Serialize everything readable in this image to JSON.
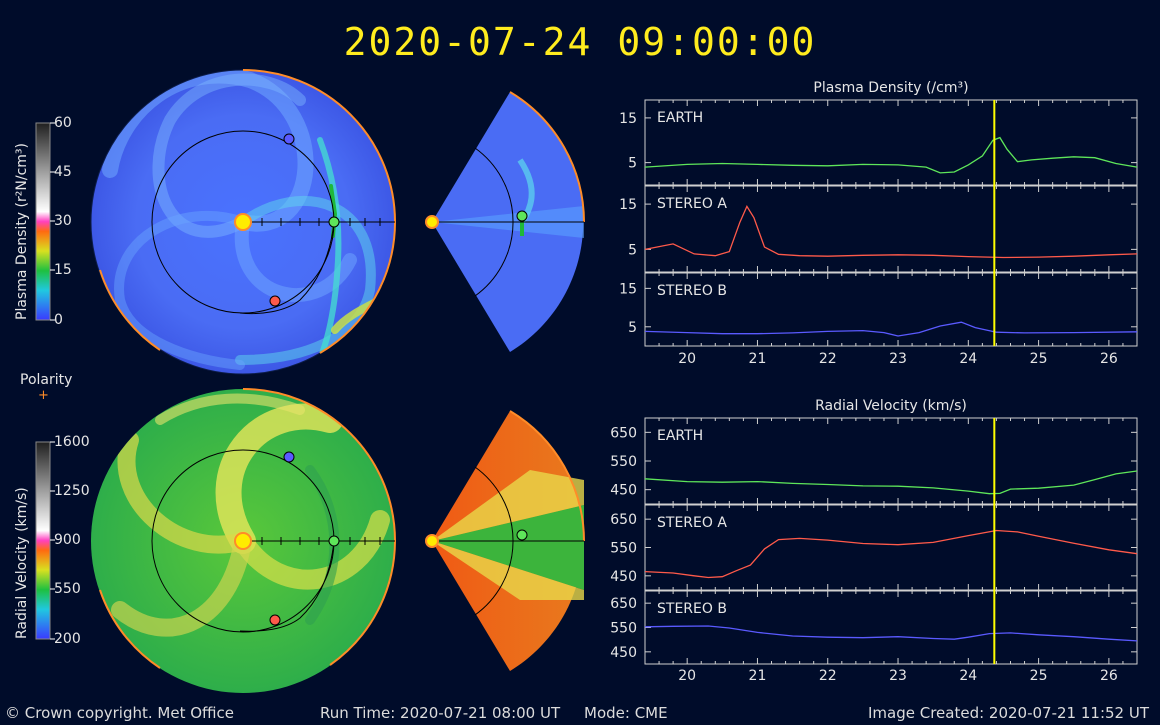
{
  "header": {
    "timestamp": "2020-07-24  09:00:00"
  },
  "footer": {
    "copyright": "© Crown copyright. Met Office",
    "run_time": "Run Time: 2020-07-21 08:00 UT",
    "mode": "Mode: CME",
    "image_created": "Image Created: 2020-07-21 11:52 UT"
  },
  "colors": {
    "earth": "#5ee65a",
    "stereo_a": "#ff5a4a",
    "stereo_b": "#5a5aff",
    "marker": "#ffff00",
    "frame": "#ff8c28"
  },
  "density_colorbar": {
    "label": "Plasma Density (r²N/cm³)",
    "ticks": [
      "60",
      "45",
      "30",
      "15",
      "0"
    ]
  },
  "velocity_colorbar": {
    "label": "Radial Velocity (km/s)",
    "ticks": [
      "1600",
      "1250",
      "900",
      "550",
      "200"
    ]
  },
  "polarity": {
    "label": "Polarity",
    "symbol": "+"
  },
  "chart_data": [
    {
      "type": "line",
      "title": "Plasma Density (/cm³)",
      "xlim": [
        19.4,
        26.4
      ],
      "x_ticks": [
        "20",
        "21",
        "22",
        "23",
        "24",
        "25",
        "26"
      ],
      "current_time_x": 24.37,
      "panels": [
        {
          "name": "EARTH",
          "ylim": [
            0,
            19
          ],
          "y_ticks": [
            "15",
            "5"
          ],
          "y_tick_values": [
            15,
            5
          ],
          "x": [
            19.4,
            20.0,
            20.5,
            21.0,
            21.5,
            22.0,
            22.5,
            23.0,
            23.4,
            23.6,
            23.8,
            24.0,
            24.2,
            24.35,
            24.45,
            24.55,
            24.7,
            24.9,
            25.2,
            25.5,
            25.8,
            26.1,
            26.4
          ],
          "y": [
            4.0,
            4.6,
            4.8,
            4.6,
            4.4,
            4.3,
            4.6,
            4.5,
            4.0,
            2.7,
            2.9,
            4.5,
            6.5,
            10.0,
            10.6,
            8.0,
            5.2,
            5.6,
            6.0,
            6.3,
            6.1,
            4.8,
            4.0
          ]
        },
        {
          "name": "STEREO A",
          "ylim": [
            0,
            19
          ],
          "y_ticks": [
            "15",
            "5"
          ],
          "y_tick_values": [
            15,
            5
          ],
          "x": [
            19.4,
            19.8,
            20.1,
            20.4,
            20.6,
            20.75,
            20.85,
            20.95,
            21.1,
            21.3,
            21.6,
            22.0,
            22.5,
            23.0,
            23.5,
            24.0,
            24.5,
            25.0,
            25.5,
            26.0,
            26.4
          ],
          "y": [
            5.0,
            6.2,
            4.0,
            3.6,
            4.5,
            11.0,
            14.5,
            12.0,
            5.5,
            3.9,
            3.6,
            3.5,
            3.7,
            3.8,
            3.7,
            3.4,
            3.2,
            3.3,
            3.5,
            3.8,
            4.0
          ]
        },
        {
          "name": "STEREO B",
          "ylim": [
            0,
            19
          ],
          "y_ticks": [
            "15",
            "5"
          ],
          "y_tick_values": [
            15,
            5
          ],
          "x": [
            19.4,
            20.0,
            20.5,
            21.0,
            21.5,
            22.0,
            22.5,
            22.8,
            23.0,
            23.3,
            23.6,
            23.9,
            24.1,
            24.4,
            24.8,
            25.5,
            26.4
          ],
          "y": [
            3.8,
            3.5,
            3.2,
            3.2,
            3.4,
            3.8,
            4.0,
            3.5,
            2.6,
            3.5,
            5.2,
            6.2,
            4.8,
            3.6,
            3.4,
            3.5,
            3.7
          ]
        }
      ]
    },
    {
      "type": "line",
      "title": "Radial Velocity (km/s)",
      "xlim": [
        19.4,
        26.4
      ],
      "x_ticks": [
        "20",
        "21",
        "22",
        "23",
        "24",
        "25",
        "26"
      ],
      "current_time_x": 24.37,
      "panels": [
        {
          "name": "EARTH",
          "ylim": [
            400,
            700
          ],
          "y_ticks": [
            "650",
            "550",
            "450"
          ],
          "y_tick_values": [
            650,
            550,
            450
          ],
          "x": [
            19.4,
            20.0,
            20.5,
            21.0,
            21.5,
            22.0,
            22.5,
            23.0,
            23.5,
            24.0,
            24.3,
            24.45,
            24.6,
            25.0,
            25.5,
            25.8,
            26.1,
            26.4
          ],
          "y": [
            488,
            478,
            476,
            478,
            472,
            468,
            463,
            462,
            456,
            445,
            436,
            437,
            452,
            455,
            466,
            485,
            505,
            515
          ]
        },
        {
          "name": "STEREO A",
          "ylim": [
            400,
            700
          ],
          "y_ticks": [
            "650",
            "550",
            "450"
          ],
          "y_tick_values": [
            650,
            550,
            450
          ],
          "x": [
            19.4,
            19.8,
            20.1,
            20.3,
            20.5,
            20.7,
            20.9,
            21.1,
            21.3,
            21.6,
            22.0,
            22.5,
            23.0,
            23.5,
            24.0,
            24.4,
            24.7,
            25.0,
            25.5,
            26.0,
            26.4
          ],
          "y": [
            465,
            460,
            450,
            444,
            447,
            468,
            488,
            545,
            578,
            582,
            576,
            564,
            560,
            568,
            592,
            610,
            605,
            590,
            565,
            542,
            528
          ]
        },
        {
          "name": "STEREO B",
          "ylim": [
            400,
            700
          ],
          "y_ticks": [
            "650",
            "550",
            "450"
          ],
          "y_tick_values": [
            650,
            550,
            450
          ],
          "x": [
            19.4,
            19.8,
            20.3,
            20.6,
            21.0,
            21.5,
            22.0,
            22.5,
            23.0,
            23.5,
            23.8,
            24.0,
            24.3,
            24.6,
            25.0,
            25.5,
            26.0,
            26.4
          ],
          "y": [
            553,
            555,
            556,
            548,
            530,
            515,
            510,
            508,
            512,
            505,
            502,
            510,
            525,
            528,
            520,
            512,
            502,
            495
          ]
        }
      ]
    }
  ]
}
